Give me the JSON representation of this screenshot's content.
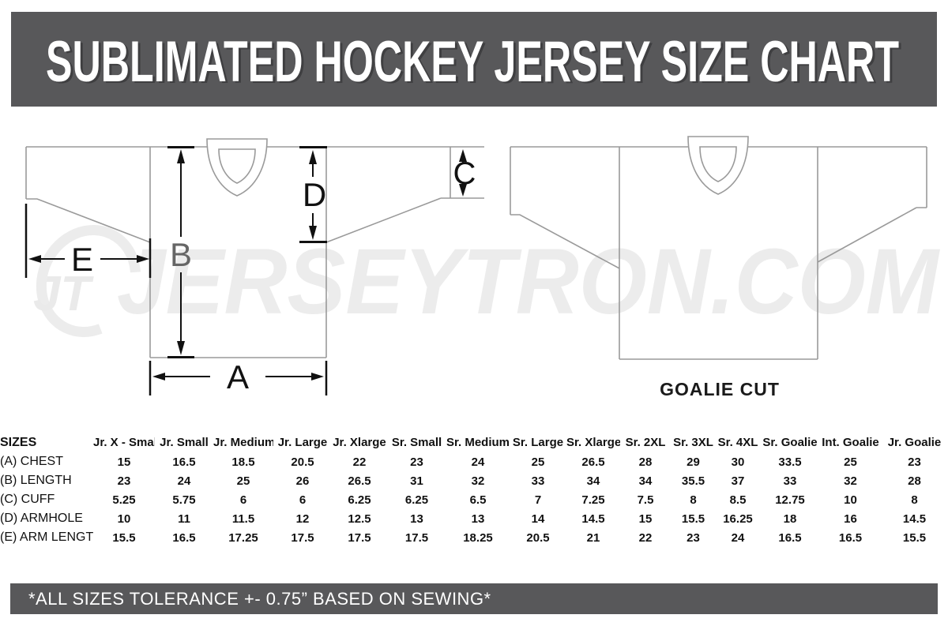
{
  "title_banner": {
    "title": "SUBLIMATED HOCKEY JERSEY SIZE CHART"
  },
  "watermark": {
    "logo_text": "JT",
    "site_text": "JERSEYTRON.COM"
  },
  "diagram": {
    "measure_labels": {
      "A": "A",
      "B": "B",
      "C": "C",
      "D": "D",
      "E": "E"
    },
    "goalie_caption": "GOALIE CUT"
  },
  "table": {
    "corner_label": "SIZES",
    "columns": [
      "Jr. X - Small",
      "Jr. Small",
      "Jr. Medium",
      "Jr. Large",
      "Jr. Xlarge",
      "Sr. Small",
      "Sr. Medium",
      "Sr. Large",
      "Sr. Xlarge",
      "Sr. 2XL",
      "Sr. 3XL",
      "Sr. 4XL",
      "Sr. Goalie",
      "Int. Goalie",
      "Jr. Goalie"
    ],
    "rows": [
      {
        "label": "(A) CHEST",
        "values": [
          "15",
          "16.5",
          "18.5",
          "20.5",
          "22",
          "23",
          "24",
          "25",
          "26.5",
          "28",
          "29",
          "30",
          "33.5",
          "25",
          "23"
        ]
      },
      {
        "label": "(B) LENGTH",
        "values": [
          "23",
          "24",
          "25",
          "26",
          "26.5",
          "31",
          "32",
          "33",
          "34",
          "34",
          "35.5",
          "37",
          "33",
          "32",
          "28"
        ]
      },
      {
        "label": "(C) CUFF",
        "values": [
          "5.25",
          "5.75",
          "6",
          "6",
          "6.25",
          "6.25",
          "6.5",
          "7",
          "7.25",
          "7.5",
          "8",
          "8.5",
          "12.75",
          "10",
          "8"
        ]
      },
      {
        "label": "(D) ARMHOLE",
        "values": [
          "10",
          "11",
          "11.5",
          "12",
          "12.5",
          "13",
          "13",
          "14",
          "14.5",
          "15",
          "15.5",
          "16.25",
          "18",
          "16",
          "14.5"
        ]
      },
      {
        "label": "(E) ARM LENGTH",
        "values": [
          "15.5",
          "16.5",
          "17.25",
          "17.5",
          "17.5",
          "17.5",
          "18.25",
          "20.5",
          "21",
          "22",
          "23",
          "24",
          "16.5",
          "16.5",
          "15.5"
        ]
      }
    ]
  },
  "footer": {
    "note": "*ALL SIZES TOLERANCE +- 0.75” BASED ON SEWING*"
  },
  "colors": {
    "banner_gray": "#58585a",
    "jersey_outline_gray": "#9a9a9a",
    "dimension_ink": "#111111",
    "b_label_gray": "#666666",
    "watermark_gray": "#ececec",
    "text_white": "#ffffff"
  }
}
